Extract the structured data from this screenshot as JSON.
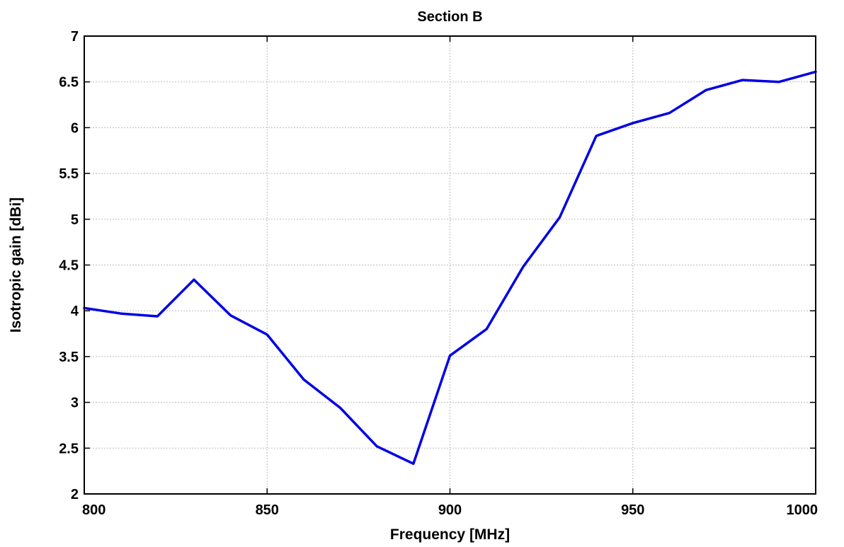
{
  "chart_data": {
    "type": "line",
    "title": "Section B",
    "xlabel": "Frequency [MHz]",
    "ylabel": "Isotropic gain [dBi]",
    "xlim": [
      800,
      1000
    ],
    "ylim": [
      2,
      7
    ],
    "x_ticks": [
      "800",
      "850",
      "900",
      "950",
      "1000"
    ],
    "y_ticks": [
      "2",
      "2.5",
      "3",
      "3.5",
      "4",
      "4.5",
      "5",
      "5.5",
      "6",
      "6.5",
      "7"
    ],
    "grid": true,
    "series": [
      {
        "color": "#0000e6",
        "x": [
          800,
          810,
          820,
          830,
          840,
          850,
          860,
          870,
          880,
          890,
          900,
          910,
          920,
          930,
          940,
          950,
          960,
          970,
          980,
          990,
          1000
        ],
        "values": [
          4.03,
          3.97,
          3.94,
          4.34,
          3.95,
          3.74,
          3.25,
          2.94,
          2.52,
          2.33,
          3.51,
          3.8,
          4.48,
          5.02,
          5.91,
          6.05,
          6.16,
          6.41,
          6.52,
          6.5,
          6.61
        ]
      }
    ]
  }
}
